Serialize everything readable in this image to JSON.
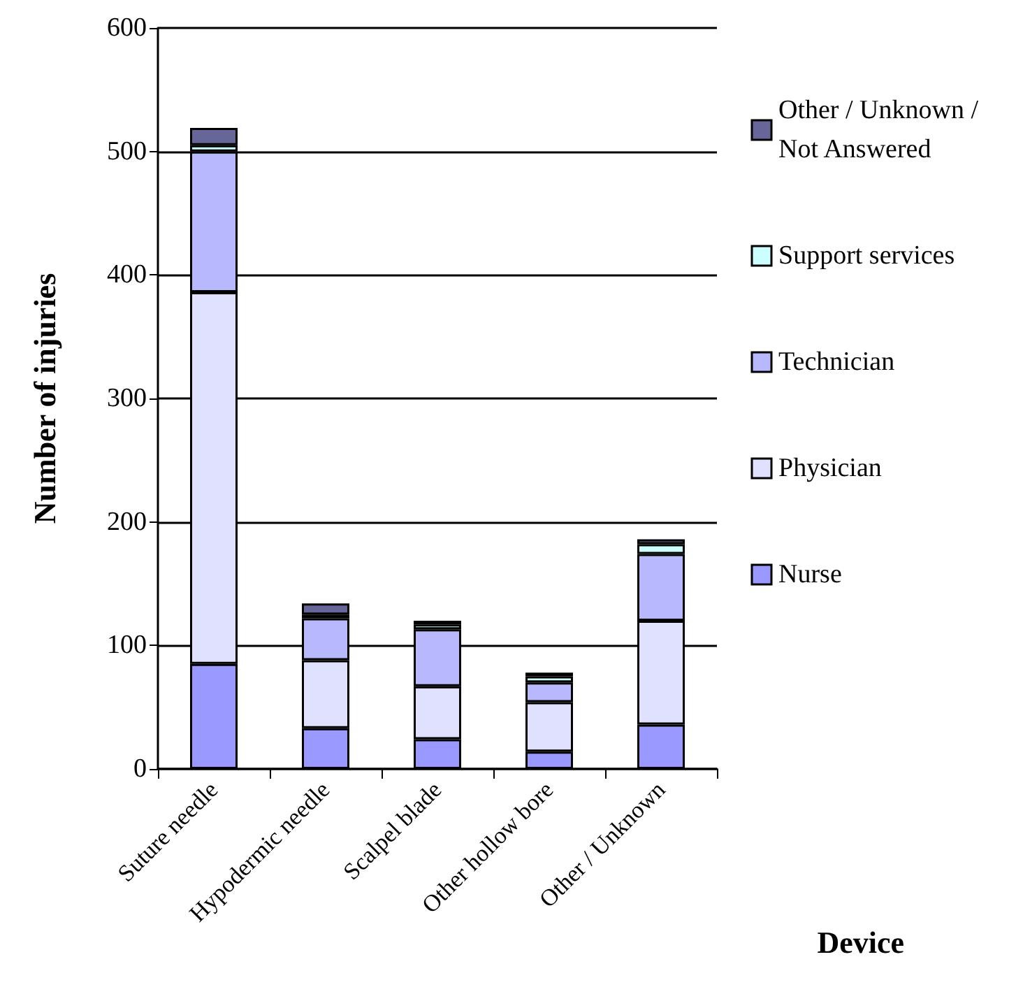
{
  "chart_data": {
    "type": "bar",
    "stacked": true,
    "xlabel": "Device",
    "ylabel": "Number of injuries",
    "categories": [
      "Suture needle",
      "Hypodermic needle",
      "Scalpel blade",
      "Other hollow bore",
      "Other / Unknown"
    ],
    "series": [
      {
        "name": "Nurse",
        "color": "#9999ff",
        "values": [
          85,
          33,
          24,
          14,
          36
        ]
      },
      {
        "name": "Physician",
        "color": "#e0e0ff",
        "values": [
          301,
          55,
          43,
          40,
          84
        ]
      },
      {
        "name": "Technician",
        "color": "#b8b8ff",
        "values": [
          114,
          34,
          46,
          16,
          54
        ]
      },
      {
        "name": "Support services",
        "color": "#ccffff",
        "values": [
          5,
          3,
          4,
          5,
          8
        ]
      },
      {
        "name": "Other / Unknown / Not Answered",
        "color": "#666699",
        "values": [
          14,
          9,
          3,
          3,
          4
        ]
      }
    ],
    "ylim": [
      0,
      600
    ],
    "yticks": [
      0,
      100,
      200,
      300,
      400,
      500,
      600
    ],
    "grid": "y",
    "legend": "right"
  }
}
